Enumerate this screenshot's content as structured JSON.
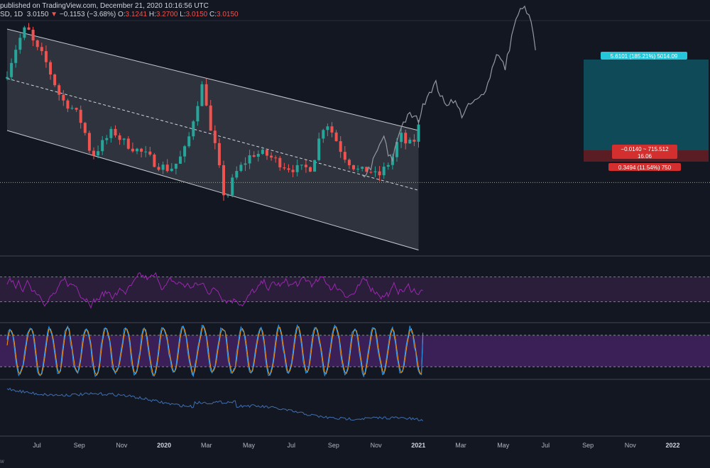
{
  "header": {
    "published": "published on TradingView.com, December 21, 2020 10:16:56 UTC",
    "symbol": "SD, 1D",
    "last": "3.0150",
    "change_arrow": "▼",
    "change": "−0.1153 (−3.68%)",
    "o_label": "O:",
    "o_value": "3.1241",
    "h_label": "H:",
    "h_value": "3.2700",
    "l_label": "L:",
    "l_value": "3.0150",
    "c_label": "C:",
    "c_value": "3.0150"
  },
  "footer": {
    "text": "w"
  },
  "colors": {
    "background": "#131722",
    "up": "#26a69a",
    "down": "#ef5350",
    "rsi": "#9c27b0",
    "stoch_k": "#2196f3",
    "stoch_d": "#ff9800",
    "lower_line": "#3f6fb2",
    "target_box": "#0e4a57",
    "stop_box": "#5a1d24"
  },
  "chart_data": {
    "type": "candlestick",
    "x_axis": {
      "tick_labels": [
        "Jul",
        "Sep",
        "Nov",
        "2020",
        "Mar",
        "May",
        "Jul",
        "Sep",
        "Nov",
        "2021",
        "Mar",
        "May",
        "Jul",
        "Sep",
        "Nov",
        "2022"
      ],
      "bold_ticks": [
        "2020",
        "2021",
        "2022"
      ]
    },
    "price_series": {
      "anchors": [
        [
          0,
          3.9
        ],
        [
          3,
          4.6
        ],
        [
          5,
          4.9
        ],
        [
          7,
          4.5
        ],
        [
          9,
          4.3
        ],
        [
          11,
          3.9
        ],
        [
          13,
          3.5
        ],
        [
          16,
          3.3
        ],
        [
          18,
          3.0
        ],
        [
          20,
          2.4
        ],
        [
          22,
          2.6
        ],
        [
          25,
          2.9
        ],
        [
          27,
          2.7
        ],
        [
          30,
          2.55
        ],
        [
          33,
          2.4
        ],
        [
          35,
          2.25
        ],
        [
          38,
          2.15
        ],
        [
          40,
          2.3
        ],
        [
          42,
          2.6
        ],
        [
          44,
          3.3
        ],
        [
          46,
          3.9
        ],
        [
          47,
          3.0
        ],
        [
          49,
          2.45
        ],
        [
          50,
          1.85
        ],
        [
          51,
          1.55
        ],
        [
          53,
          2.05
        ],
        [
          55,
          2.25
        ],
        [
          57,
          2.45
        ],
        [
          60,
          2.45
        ],
        [
          62,
          2.35
        ],
        [
          65,
          2.2
        ],
        [
          68,
          2.15
        ],
        [
          71,
          2.2
        ],
        [
          72,
          2.6
        ],
        [
          74,
          3.1
        ],
        [
          76,
          2.8
        ],
        [
          78,
          2.45
        ],
        [
          80,
          2.25
        ],
        [
          82,
          2.1
        ],
        [
          84,
          2.15
        ],
        [
          86,
          2.0
        ],
        [
          88,
          2.2
        ],
        [
          90,
          2.45
        ],
        [
          91,
          2.85
        ],
        [
          93,
          2.6
        ],
        [
          95,
          2.75
        ]
      ],
      "last": 3.015
    },
    "projection_path": {
      "anchors": [
        [
          82,
          2.0
        ],
        [
          84,
          2.2
        ],
        [
          86,
          2.6
        ],
        [
          87,
          2.8
        ],
        [
          88,
          2.4
        ],
        [
          89,
          2.35
        ],
        [
          90,
          2.7
        ],
        [
          91,
          3.0
        ],
        [
          93,
          3.2
        ],
        [
          95,
          3.1
        ],
        [
          97,
          3.6
        ],
        [
          99,
          3.8
        ],
        [
          101,
          3.4
        ],
        [
          103,
          3.5
        ],
        [
          105,
          3.2
        ],
        [
          107,
          3.4
        ],
        [
          109,
          3.5
        ],
        [
          111,
          3.8
        ],
        [
          113,
          4.4
        ],
        [
          115,
          4.1
        ],
        [
          117,
          4.9
        ],
        [
          119,
          5.3
        ],
        [
          121,
          5.0
        ],
        [
          122,
          4.4
        ]
      ]
    },
    "channel": {
      "upper": [
        [
          0,
          4.85
        ],
        [
          95,
          2.9
        ]
      ],
      "lower": [
        [
          0,
          2.9
        ],
        [
          95,
          0.6
        ]
      ],
      "mid": [
        [
          0,
          3.9
        ],
        [
          95,
          1.75
        ]
      ]
    },
    "support_level": 1.9,
    "position_tool": {
      "target_label": "5.6101 (185.21%) 5014.09",
      "entry_label_line1": "−0.0140 ~ 715.512",
      "entry_label_line2": "16.06",
      "stop_label": "0.3494 (11.54%) 750"
    },
    "rsi": {
      "upper_band": 70,
      "lower_band": 30,
      "last": 48
    },
    "stochastic": {
      "upper_band": 80,
      "lower_band": 20,
      "k_last": 85,
      "d_last": 78
    },
    "lower_panel": {
      "type": "line",
      "trend": "declining"
    }
  }
}
